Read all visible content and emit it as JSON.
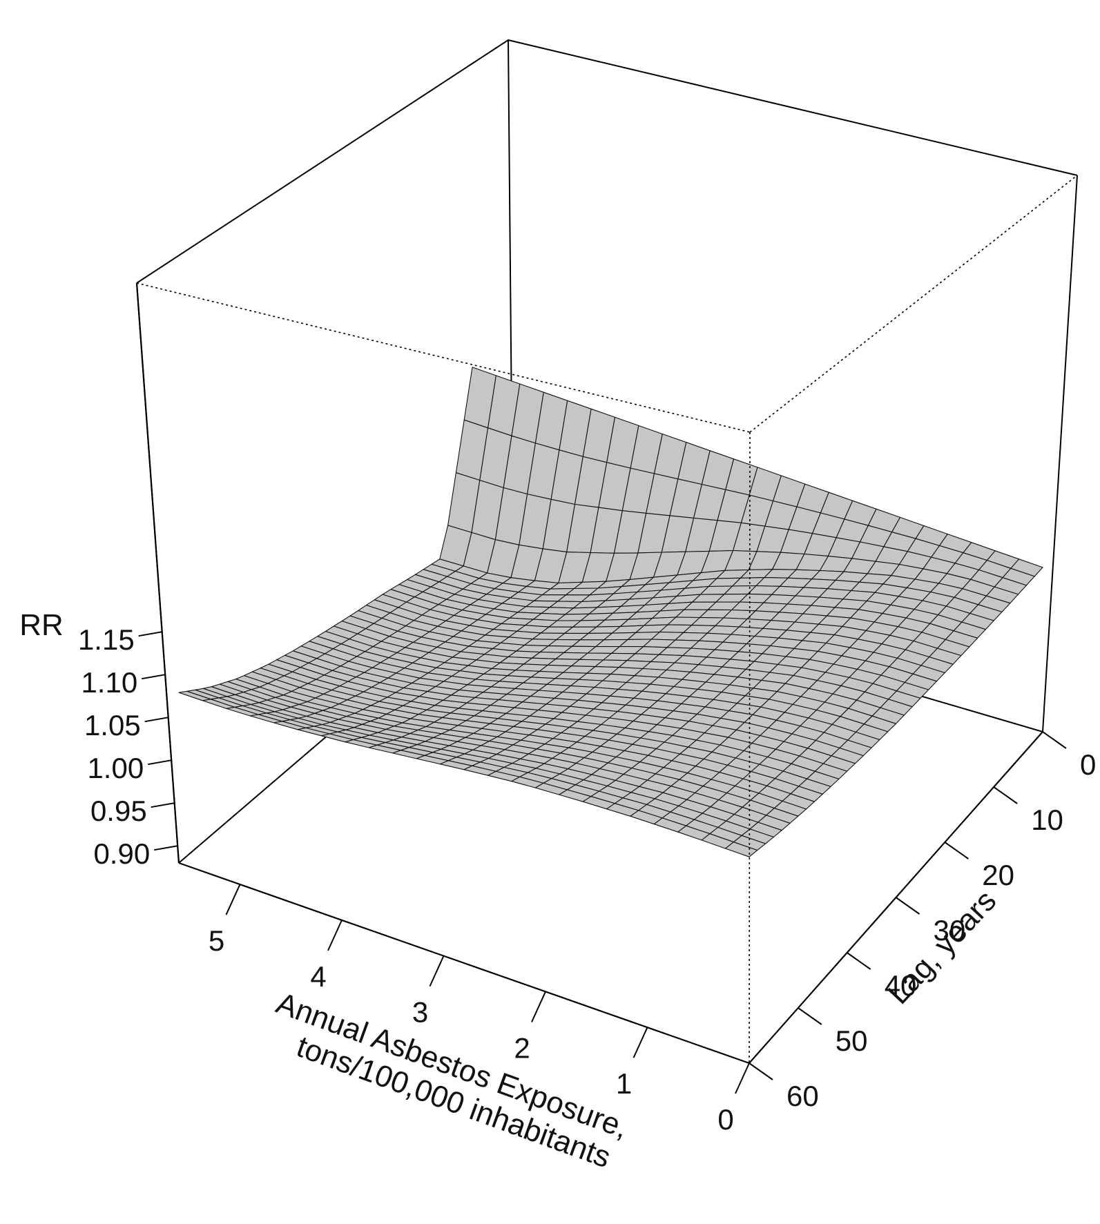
{
  "chart_data": {
    "type": "surface3d",
    "zlabel": "RR",
    "xlabel_line1": "Annual Asbestos Exposure,",
    "xlabel_line2": "tons/100,000 inhabitants",
    "ylabel": "Lag, years",
    "z_ticks": [
      "0.90",
      "0.95",
      "1.00",
      "1.05",
      "1.10",
      "1.15"
    ],
    "z_tick_values": [
      0.9,
      0.95,
      1.0,
      1.05,
      1.1,
      1.15
    ],
    "x_ticks": [
      "0",
      "1",
      "2",
      "3",
      "4",
      "5"
    ],
    "x_tick_values": [
      0,
      1,
      2,
      3,
      4,
      5
    ],
    "y_ticks": [
      "0",
      "10",
      "20",
      "30",
      "40",
      "50",
      "60"
    ],
    "y_tick_values": [
      0,
      10,
      20,
      30,
      40,
      50,
      60
    ],
    "xlim": [
      0,
      5.6
    ],
    "ylim": [
      0,
      60
    ],
    "zlim": [
      0.88,
      1.2
    ],
    "surface_color": "#c6c6c6",
    "surface": {
      "exposure": [
        0,
        0.56,
        1.12,
        1.68,
        2.24,
        2.8,
        3.36,
        3.92,
        4.48,
        5.04,
        5.6
      ],
      "lag": [
        0,
        6,
        12,
        18,
        24,
        30,
        36,
        42,
        48,
        54,
        60
      ],
      "rr": [
        [
          1.072,
          1.072,
          1.072,
          1.072,
          1.072,
          1.072,
          1.072,
          1.072,
          1.072,
          1.072,
          1.072
        ],
        [
          1.073,
          1.07,
          1.058,
          1.04,
          1.019,
          0.994,
          0.964,
          0.934,
          0.908,
          0.893,
          0.889
        ],
        [
          1.075,
          1.072,
          1.061,
          1.043,
          1.023,
          0.999,
          0.971,
          0.944,
          0.922,
          0.909,
          0.906
        ],
        [
          1.077,
          1.074,
          1.064,
          1.047,
          1.028,
          1.006,
          0.98,
          0.956,
          0.937,
          0.926,
          0.924
        ],
        [
          1.08,
          1.077,
          1.068,
          1.053,
          1.035,
          1.014,
          0.991,
          0.969,
          0.952,
          0.942,
          0.94
        ],
        [
          1.083,
          1.081,
          1.073,
          1.059,
          1.043,
          1.024,
          1.003,
          0.983,
          0.968,
          0.959,
          0.957
        ],
        [
          1.088,
          1.086,
          1.079,
          1.067,
          1.052,
          1.035,
          1.017,
          0.999,
          0.985,
          0.977,
          0.975
        ],
        [
          1.094,
          1.092,
          1.086,
          1.076,
          1.063,
          1.048,
          1.032,
          1.016,
          1.004,
          0.997,
          0.995
        ],
        [
          1.101,
          1.1,
          1.095,
          1.087,
          1.077,
          1.064,
          1.05,
          1.036,
          1.026,
          1.019,
          1.018
        ],
        [
          1.11,
          1.109,
          1.106,
          1.1,
          1.093,
          1.083,
          1.072,
          1.061,
          1.052,
          1.047,
          1.046
        ],
        [
          1.121,
          1.121,
          1.12,
          1.117,
          1.113,
          1.106,
          1.098,
          1.09,
          1.084,
          1.08,
          1.079
        ]
      ]
    }
  }
}
